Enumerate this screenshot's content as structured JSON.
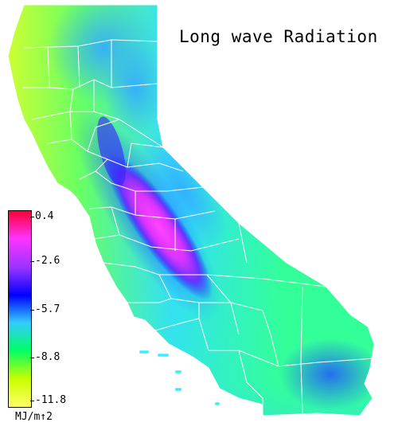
{
  "map": {
    "title": "Long wave Radiation",
    "legend": {
      "units": "MJ/m↑2",
      "ticks": [
        "0.4",
        "-2.6",
        "-5.7",
        "-8.8",
        "-11.8"
      ],
      "tick_values": [
        0.4,
        -2.6,
        -5.7,
        -8.8,
        -11.8
      ],
      "colors": [
        "#ff0033",
        "#ff33ff",
        "#9933ff",
        "#0000ff",
        "#33ccff",
        "#00ff66",
        "#ccff00",
        "#ffff66"
      ]
    }
  }
}
